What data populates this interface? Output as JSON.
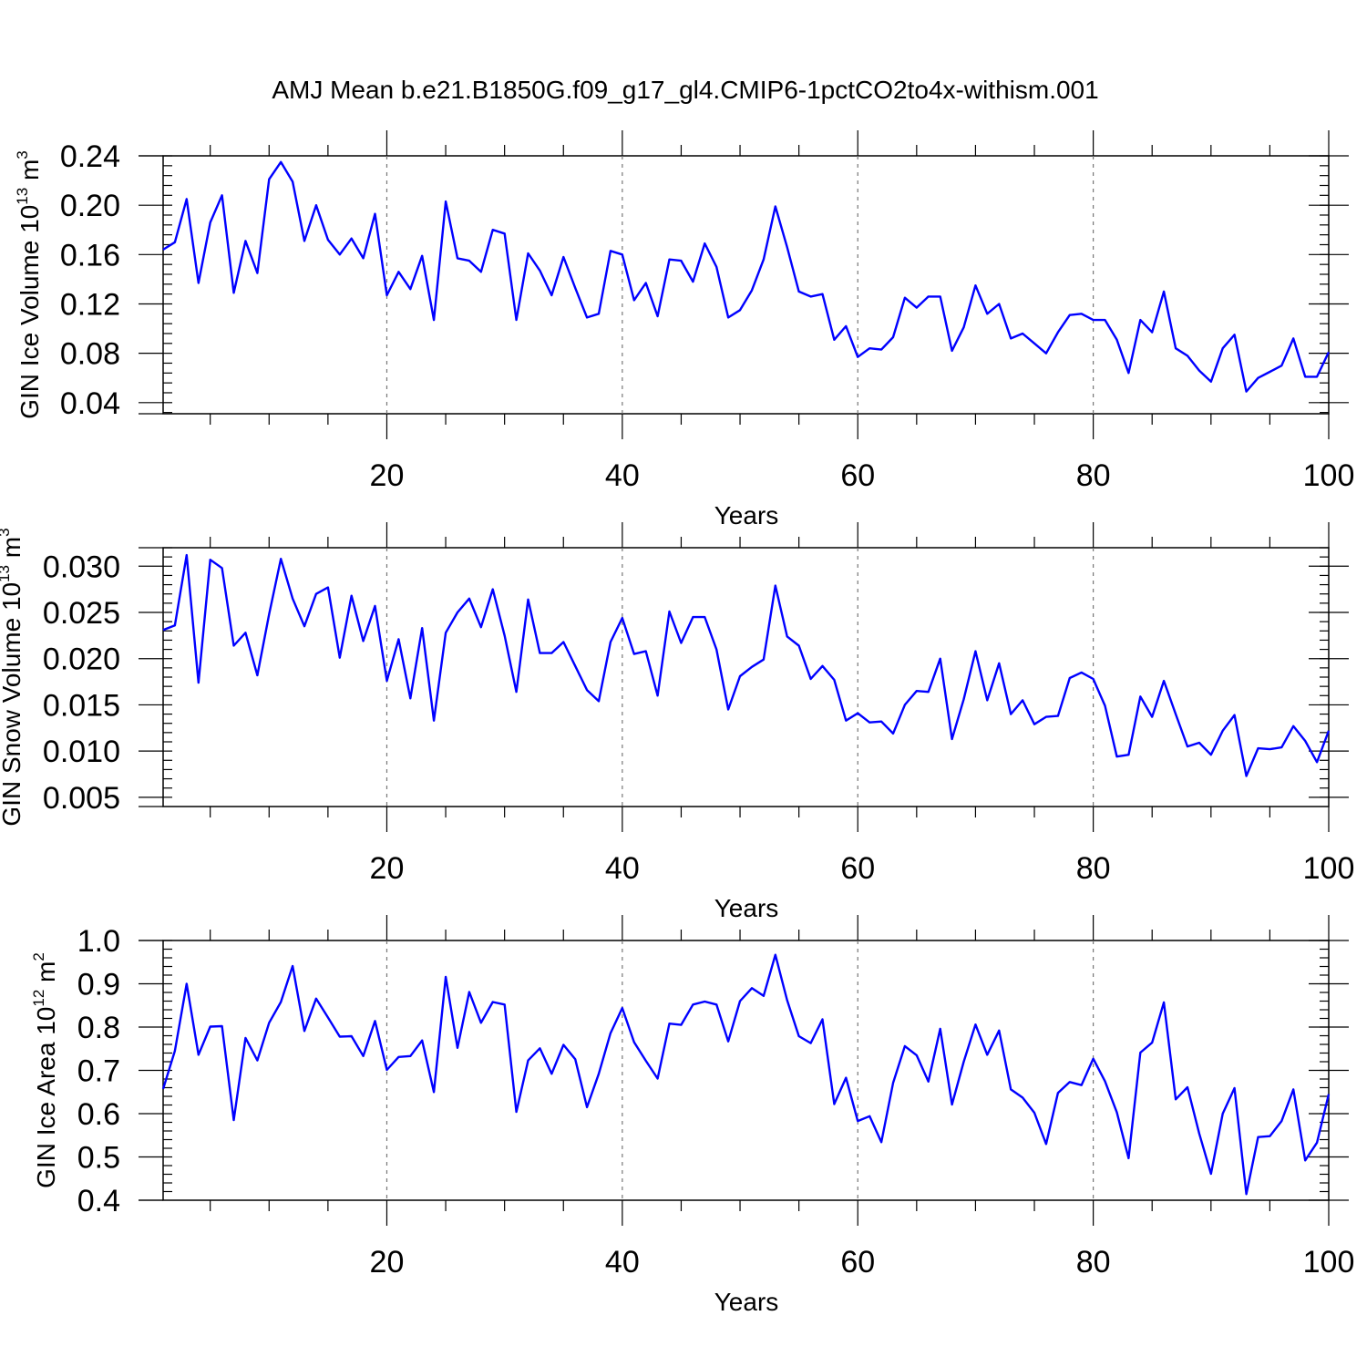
{
  "title": "AMJ Mean b.e21.B1850G.f09_g17_gl4.CMIP6-1pctCO2to4x-withism.001",
  "colors": {
    "line": "#0000ff",
    "grid": "#777777"
  },
  "chart_data": [
    {
      "type": "line",
      "xlabel": "Years",
      "ylabel": "GIN Ice Volume",
      "ylabel_unit": "10",
      "ylabel_exp": "13",
      "ylabel_tail": " m",
      "ylabel_tail_exp": "3",
      "xlim": [
        1,
        100
      ],
      "ylim": [
        0.031,
        0.24
      ],
      "xticks": [
        20,
        40,
        60,
        80,
        100
      ],
      "yticks": [
        "0.24",
        "0.20",
        "0.16",
        "0.12",
        "0.08",
        "0.04"
      ],
      "grid_x": true,
      "x_start": 1,
      "values": [
        0.164,
        0.17,
        0.205,
        0.137,
        0.186,
        0.208,
        0.129,
        0.171,
        0.145,
        0.221,
        0.235,
        0.219,
        0.171,
        0.2,
        0.172,
        0.16,
        0.173,
        0.157,
        0.193,
        0.127,
        0.146,
        0.132,
        0.159,
        0.107,
        0.203,
        0.157,
        0.155,
        0.146,
        0.18,
        0.177,
        0.107,
        0.161,
        0.147,
        0.127,
        0.158,
        0.133,
        0.109,
        0.112,
        0.163,
        0.16,
        0.123,
        0.137,
        0.11,
        0.156,
        0.155,
        0.138,
        0.169,
        0.15,
        0.109,
        0.115,
        0.131,
        0.156,
        0.199,
        0.166,
        0.13,
        0.126,
        0.128,
        0.091,
        0.102,
        0.077,
        0.084,
        0.083,
        0.093,
        0.125,
        0.117,
        0.126,
        0.126,
        0.082,
        0.101,
        0.135,
        0.112,
        0.12,
        0.092,
        0.096,
        0.088,
        0.08,
        0.097,
        0.111,
        0.112,
        0.107,
        0.107,
        0.091,
        0.064,
        0.107,
        0.097,
        0.13,
        0.084,
        0.078,
        0.066,
        0.057,
        0.084,
        0.095,
        0.049,
        0.06,
        0.065,
        0.07,
        0.092,
        0.061,
        0.061,
        0.081
      ]
    },
    {
      "type": "line",
      "xlabel": "Years",
      "ylabel": "GIN Snow Volume",
      "ylabel_unit": "10",
      "ylabel_exp": "13",
      "ylabel_tail": " m",
      "ylabel_tail_exp": "3",
      "xlim": [
        1,
        100
      ],
      "ylim": [
        0.004,
        0.032
      ],
      "xticks": [
        20,
        40,
        60,
        80,
        100
      ],
      "yticks": [
        "0.030",
        "0.025",
        "0.020",
        "0.015",
        "0.010",
        "0.005"
      ],
      "grid_x": true,
      "x_start": 1,
      "values": [
        0.0231,
        0.0236,
        0.0312,
        0.0174,
        0.0307,
        0.0298,
        0.0214,
        0.0228,
        0.0182,
        0.0248,
        0.0308,
        0.0265,
        0.0235,
        0.027,
        0.0277,
        0.0201,
        0.0268,
        0.0219,
        0.0257,
        0.0176,
        0.0221,
        0.0157,
        0.0233,
        0.0133,
        0.0228,
        0.025,
        0.0265,
        0.0234,
        0.0275,
        0.0225,
        0.0164,
        0.0264,
        0.0206,
        0.0206,
        0.0218,
        0.0192,
        0.0166,
        0.0154,
        0.0218,
        0.0244,
        0.0205,
        0.0208,
        0.016,
        0.0251,
        0.0217,
        0.0245,
        0.0245,
        0.021,
        0.0145,
        0.0181,
        0.0191,
        0.0199,
        0.0279,
        0.0224,
        0.0214,
        0.0178,
        0.0192,
        0.0177,
        0.0133,
        0.0141,
        0.0131,
        0.0132,
        0.0119,
        0.015,
        0.0165,
        0.0164,
        0.02,
        0.0113,
        0.0156,
        0.0208,
        0.0155,
        0.0195,
        0.014,
        0.0155,
        0.0129,
        0.0137,
        0.0138,
        0.0179,
        0.0185,
        0.0178,
        0.0149,
        0.0094,
        0.0096,
        0.0159,
        0.0137,
        0.0176,
        0.014,
        0.0105,
        0.0109,
        0.0096,
        0.0122,
        0.0139,
        0.0073,
        0.0103,
        0.0102,
        0.0104,
        0.0127,
        0.0111,
        0.0088,
        0.0122
      ]
    },
    {
      "type": "line",
      "xlabel": "Years",
      "ylabel": "GIN Ice Area",
      "ylabel_unit": "10",
      "ylabel_exp": "12",
      "ylabel_tail": " m",
      "ylabel_tail_exp": "2",
      "xlim": [
        1,
        100
      ],
      "ylim": [
        0.4,
        1.0
      ],
      "xticks": [
        20,
        40,
        60,
        80,
        100
      ],
      "yticks": [
        "1.0",
        "0.9",
        "0.8",
        "0.7",
        "0.6",
        "0.5",
        "0.4"
      ],
      "grid_x": true,
      "x_start": 1,
      "values": [
        0.657,
        0.745,
        0.9,
        0.736,
        0.801,
        0.802,
        0.585,
        0.775,
        0.723,
        0.81,
        0.858,
        0.941,
        0.791,
        0.866,
        0.822,
        0.778,
        0.779,
        0.733,
        0.814,
        0.701,
        0.731,
        0.733,
        0.769,
        0.65,
        0.916,
        0.752,
        0.881,
        0.81,
        0.858,
        0.852,
        0.604,
        0.723,
        0.751,
        0.692,
        0.759,
        0.726,
        0.615,
        0.692,
        0.786,
        0.844,
        0.765,
        0.722,
        0.681,
        0.808,
        0.805,
        0.852,
        0.859,
        0.852,
        0.767,
        0.86,
        0.89,
        0.872,
        0.967,
        0.862,
        0.779,
        0.763,
        0.818,
        0.622,
        0.683,
        0.583,
        0.594,
        0.534,
        0.671,
        0.756,
        0.735,
        0.674,
        0.796,
        0.621,
        0.72,
        0.806,
        0.736,
        0.792,
        0.656,
        0.637,
        0.602,
        0.53,
        0.648,
        0.673,
        0.666,
        0.727,
        0.675,
        0.603,
        0.497,
        0.741,
        0.764,
        0.857,
        0.633,
        0.661,
        0.554,
        0.461,
        0.6,
        0.659,
        0.414,
        0.546,
        0.548,
        0.583,
        0.656,
        0.492,
        0.533,
        0.645
      ]
    }
  ]
}
